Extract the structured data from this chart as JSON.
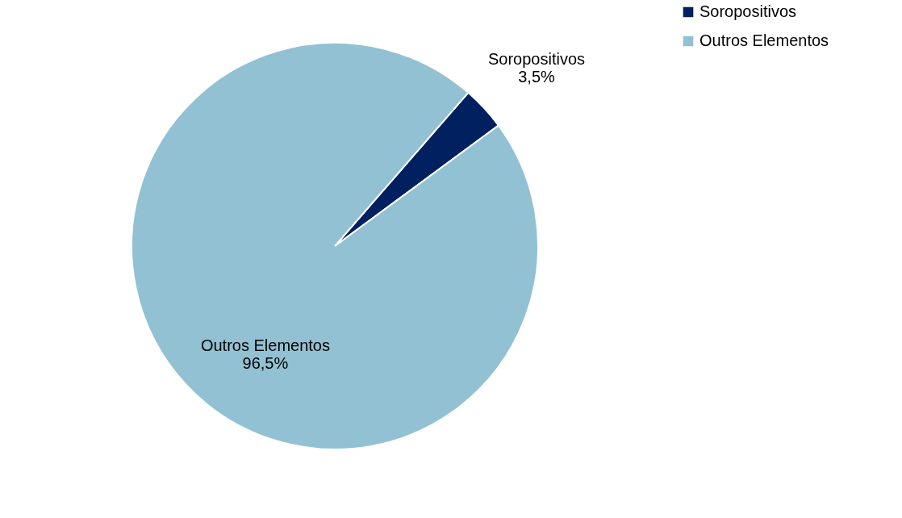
{
  "chart_data": {
    "type": "pie",
    "categories": [
      "Soropositivos",
      "Outros Elementos"
    ],
    "values": [
      3.5,
      96.5
    ],
    "colors": [
      "#002060",
      "#92c1d3"
    ],
    "value_labels": [
      "3,5%",
      "96,5%"
    ],
    "legend": "right"
  }
}
